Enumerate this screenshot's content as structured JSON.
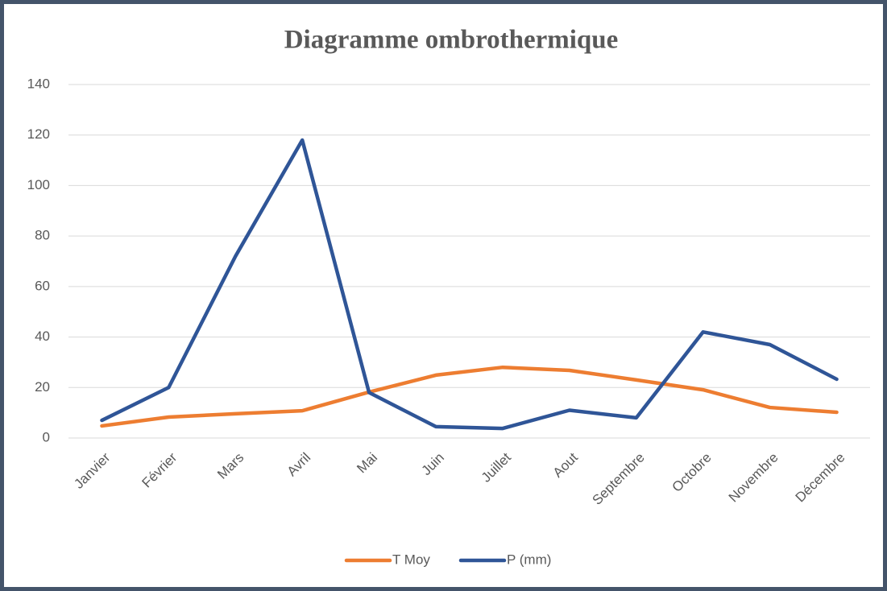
{
  "chart_data": {
    "type": "line",
    "title": "Diagramme ombrothermique",
    "categories": [
      "Janvier",
      "Février",
      "Mars",
      "Avril",
      "Mai",
      "Juin",
      "Juillet",
      "Aout",
      "Septembre",
      "Octobre",
      "Novembre",
      "Décembre"
    ],
    "series": [
      {
        "name": "T Moy",
        "color": "#ed7d31",
        "values": [
          4.8,
          8.3,
          9.6,
          10.8,
          18.2,
          24.9,
          28,
          26.8,
          23,
          19.1,
          12.1,
          10.2
        ]
      },
      {
        "name": "P (mm)",
        "color": "#2f5597",
        "values": [
          7,
          20,
          72,
          118,
          18,
          4.5,
          3.8,
          11,
          8,
          42,
          37,
          23.3
        ]
      }
    ],
    "ylim": [
      0,
      140
    ],
    "yticks": [
      0,
      20,
      40,
      60,
      80,
      100,
      120,
      140
    ],
    "grid": true,
    "legend": "bottom"
  }
}
